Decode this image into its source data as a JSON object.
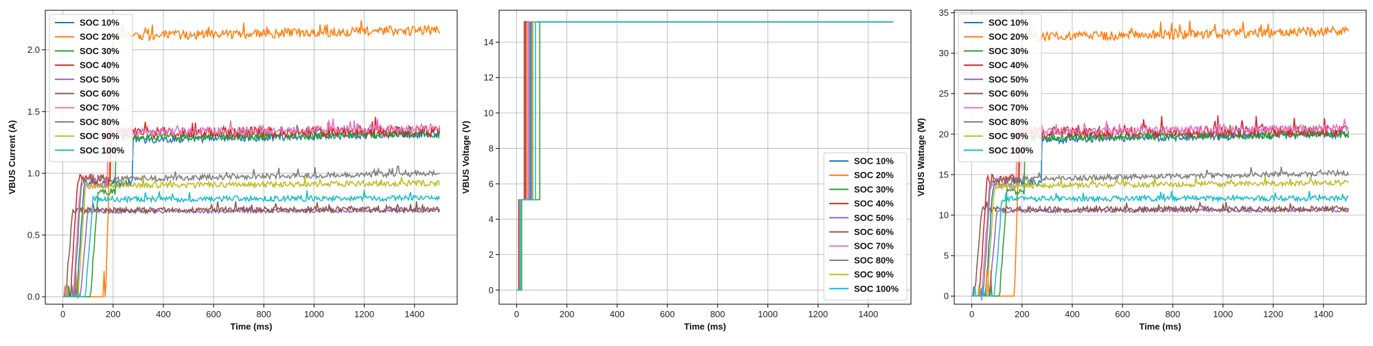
{
  "figure": {
    "panel_count": 3
  },
  "series_names": [
    "SOC 10%",
    "SOC 20%",
    "SOC 30%",
    "SOC 40%",
    "SOC 50%",
    "SOC 60%",
    "SOC 70%",
    "SOC 80%",
    "SOC 90%",
    "SOC 100%"
  ],
  "series_colors": [
    "#1f77b4",
    "#ff7f0e",
    "#2ca02c",
    "#d62728",
    "#9467bd",
    "#8c564b",
    "#e377c2",
    "#7f7f7f",
    "#bcbd22",
    "#17becf"
  ],
  "chart_data": [
    {
      "type": "line",
      "xlabel": "Time (ms)",
      "ylabel": "VBUS Current (A)",
      "xlim": [
        -70,
        1570
      ],
      "ylim": [
        -0.06,
        2.32
      ],
      "xticks": [
        0,
        200,
        400,
        600,
        800,
        1000,
        1200,
        1400
      ],
      "yticks": [
        0.0,
        0.5,
        1.0,
        1.5,
        2.0
      ],
      "ytick_labels": [
        "0.0",
        "0.5",
        "1.0",
        "1.5",
        "2.0"
      ],
      "grid": true,
      "legend": "top-left",
      "x_end": 1500,
      "series": [
        {
          "name": "SOC 10%",
          "color": "#1f77b4",
          "rise_ms": 85,
          "plateau_ms": 280,
          "plateau_value": 0.92,
          "final_start": 1.27,
          "final_end": 1.32,
          "noise": 0.02
        },
        {
          "name": "SOC 20%",
          "color": "#ff7f0e",
          "rise_ms": 200,
          "plateau_ms": 200,
          "plateau_value": 2.1,
          "final_start": 2.11,
          "final_end": 2.16,
          "noise": 0.025
        },
        {
          "name": "SOC 30%",
          "color": "#2ca02c",
          "rise_ms": 140,
          "plateau_ms": 210,
          "plateau_value": 0.85,
          "final_start": 1.29,
          "final_end": 1.32,
          "noise": 0.02
        },
        {
          "name": "SOC 40%",
          "color": "#d62728",
          "rise_ms": 60,
          "plateau_ms": 190,
          "plateau_value": 0.95,
          "final_start": 1.33,
          "final_end": 1.34,
          "noise": 0.03
        },
        {
          "name": "SOC 50%",
          "color": "#9467bd",
          "rise_ms": 100,
          "plateau_ms": 100,
          "plateau_value": 0.7,
          "final_start": 0.69,
          "final_end": 0.7,
          "noise": 0.01
        },
        {
          "name": "SOC 60%",
          "color": "#8c564b",
          "rise_ms": 40,
          "plateau_ms": 40,
          "plateau_value": 0.71,
          "final_start": 0.7,
          "final_end": 0.71,
          "noise": 0.015
        },
        {
          "name": "SOC 70%",
          "color": "#e377c2",
          "rise_ms": 70,
          "plateau_ms": 180,
          "plateau_value": 0.9,
          "final_start": 1.33,
          "final_end": 1.37,
          "noise": 0.02
        },
        {
          "name": "SOC 80%",
          "color": "#7f7f7f",
          "rise_ms": 75,
          "plateau_ms": 75,
          "plateau_value": 0.95,
          "final_start": 0.95,
          "final_end": 1.0,
          "noise": 0.015
        },
        {
          "name": "SOC 90%",
          "color": "#bcbd22",
          "rise_ms": 90,
          "plateau_ms": 90,
          "plateau_value": 0.9,
          "final_start": 0.9,
          "final_end": 0.92,
          "noise": 0.015
        },
        {
          "name": "SOC 100%",
          "color": "#17becf",
          "rise_ms": 120,
          "plateau_ms": 120,
          "plateau_value": 0.8,
          "final_start": 0.79,
          "final_end": 0.8,
          "noise": 0.015
        }
      ]
    },
    {
      "type": "line",
      "xlabel": "Time (ms)",
      "ylabel": "VBUS Voltage (V)",
      "xlim": [
        -70,
        1570
      ],
      "ylim": [
        -0.8,
        15.8
      ],
      "xticks": [
        0,
        200,
        400,
        600,
        800,
        1000,
        1200,
        1400
      ],
      "yticks": [
        0,
        2,
        4,
        6,
        8,
        10,
        12,
        14
      ],
      "ytick_labels": [
        "0",
        "2",
        "4",
        "6",
        "8",
        "10",
        "12",
        "14"
      ],
      "grid": true,
      "legend": "bottom-right",
      "x_end": 1500,
      "series": [
        {
          "name": "SOC 10%",
          "color": "#1f77b4",
          "on_ms": 10,
          "mid_ms": 55,
          "mid_value": 5.1,
          "final_value": 15.15
        },
        {
          "name": "SOC 20%",
          "color": "#ff7f0e",
          "on_ms": 10,
          "mid_ms": 40,
          "mid_value": 5.1,
          "final_value": 15.15
        },
        {
          "name": "SOC 30%",
          "color": "#2ca02c",
          "on_ms": 20,
          "mid_ms": 92,
          "mid_value": 5.1,
          "final_value": 15.15
        },
        {
          "name": "SOC 40%",
          "color": "#d62728",
          "on_ms": 15,
          "mid_ms": 35,
          "mid_value": 5.1,
          "final_value": 15.15
        },
        {
          "name": "SOC 50%",
          "color": "#9467bd",
          "on_ms": 12,
          "mid_ms": 50,
          "mid_value": 5.1,
          "final_value": 15.15
        },
        {
          "name": "SOC 60%",
          "color": "#8c564b",
          "on_ms": 8,
          "mid_ms": 30,
          "mid_value": 5.1,
          "final_value": 15.15
        },
        {
          "name": "SOC 70%",
          "color": "#e377c2",
          "on_ms": 12,
          "mid_ms": 45,
          "mid_value": 5.1,
          "final_value": 15.15
        },
        {
          "name": "SOC 80%",
          "color": "#7f7f7f",
          "on_ms": 14,
          "mid_ms": 60,
          "mid_value": 5.1,
          "final_value": 15.15
        },
        {
          "name": "SOC 90%",
          "color": "#bcbd22",
          "on_ms": 16,
          "mid_ms": 65,
          "mid_value": 5.1,
          "final_value": 15.15
        },
        {
          "name": "SOC 100%",
          "color": "#17becf",
          "on_ms": 18,
          "mid_ms": 75,
          "mid_value": 5.1,
          "final_value": 15.15
        }
      ]
    },
    {
      "type": "line",
      "xlabel": "Time (ms)",
      "ylabel": "VBUS Wattage (W)",
      "xlim": [
        -70,
        1570
      ],
      "ylim": [
        -1.0,
        35.3
      ],
      "xticks": [
        0,
        200,
        400,
        600,
        800,
        1000,
        1200,
        1400
      ],
      "yticks": [
        0,
        5,
        10,
        15,
        20,
        25,
        30,
        35
      ],
      "ytick_labels": [
        "0",
        "5",
        "10",
        "15",
        "20",
        "25",
        "30",
        "35"
      ],
      "grid": true,
      "legend": "top-left",
      "x_end": 1500,
      "series": [
        {
          "name": "SOC 10%",
          "color": "#1f77b4",
          "rise_ms": 85,
          "plateau_ms": 280,
          "plateau_value": 14.0,
          "final_start": 19.3,
          "final_end": 20.0,
          "noise": 0.3
        },
        {
          "name": "SOC 20%",
          "color": "#ff7f0e",
          "rise_ms": 200,
          "plateau_ms": 200,
          "plateau_value": 32.0,
          "final_start": 32.0,
          "final_end": 32.7,
          "noise": 0.4
        },
        {
          "name": "SOC 30%",
          "color": "#2ca02c",
          "rise_ms": 140,
          "plateau_ms": 210,
          "plateau_value": 13.0,
          "final_start": 19.6,
          "final_end": 20.0,
          "noise": 0.3
        },
        {
          "name": "SOC 40%",
          "color": "#d62728",
          "rise_ms": 60,
          "plateau_ms": 190,
          "plateau_value": 14.5,
          "final_start": 20.2,
          "final_end": 20.4,
          "noise": 0.45
        },
        {
          "name": "SOC 50%",
          "color": "#9467bd",
          "rise_ms": 100,
          "plateau_ms": 100,
          "plateau_value": 10.6,
          "final_start": 10.5,
          "final_end": 10.6,
          "noise": 0.15
        },
        {
          "name": "SOC 60%",
          "color": "#8c564b",
          "rise_ms": 40,
          "plateau_ms": 40,
          "plateau_value": 10.8,
          "final_start": 10.7,
          "final_end": 10.8,
          "noise": 0.22
        },
        {
          "name": "SOC 70%",
          "color": "#e377c2",
          "rise_ms": 70,
          "plateau_ms": 180,
          "plateau_value": 13.6,
          "final_start": 20.2,
          "final_end": 20.8,
          "noise": 0.3
        },
        {
          "name": "SOC 80%",
          "color": "#7f7f7f",
          "rise_ms": 75,
          "plateau_ms": 75,
          "plateau_value": 14.4,
          "final_start": 14.4,
          "final_end": 15.2,
          "noise": 0.22
        },
        {
          "name": "SOC 90%",
          "color": "#bcbd22",
          "rise_ms": 90,
          "plateau_ms": 90,
          "plateau_value": 13.6,
          "final_start": 13.6,
          "final_end": 14.0,
          "noise": 0.22
        },
        {
          "name": "SOC 100%",
          "color": "#17becf",
          "rise_ms": 120,
          "plateau_ms": 120,
          "plateau_value": 12.1,
          "final_start": 12.0,
          "final_end": 12.1,
          "noise": 0.22
        }
      ]
    }
  ]
}
